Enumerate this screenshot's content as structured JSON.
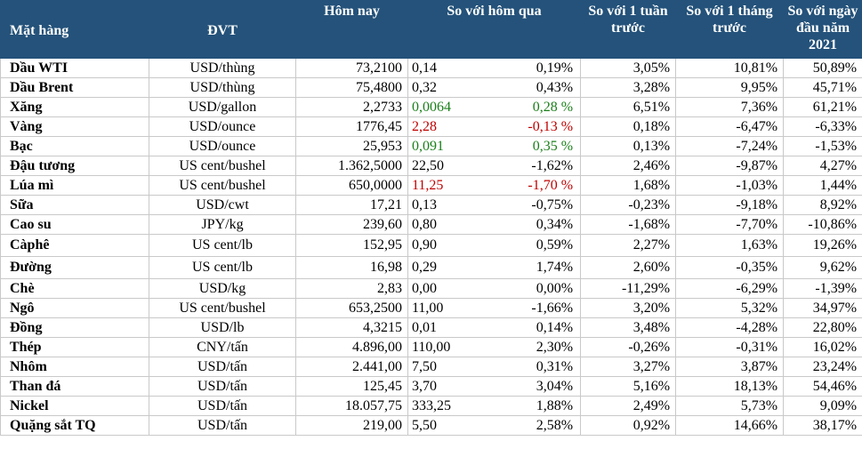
{
  "headers": {
    "item": "Mặt hàng",
    "unit": "ĐVT",
    "today": "Hôm nay",
    "vs_yesterday": "So với hôm qua",
    "vs_week": "So với 1 tuần trước",
    "vs_month": "So với 1 tháng trước",
    "vs_year_start": "So với ngày đầu năm 2021"
  },
  "colors": {
    "header_bg": "#24527a",
    "up": "#1a7f1a",
    "down": "#c00000"
  },
  "rows": [
    {
      "name": "Dầu WTI",
      "unit": "USD/thùng",
      "today": "73,2100",
      "chg": "0,14",
      "chg_pct": "0,19%",
      "week": "3,05%",
      "month": "10,81%",
      "ytd": "50,89%",
      "color": ""
    },
    {
      "name": "Dầu Brent",
      "unit": "USD/thùng",
      "today": "75,4800",
      "chg": "0,32",
      "chg_pct": "0,43%",
      "week": "3,28%",
      "month": "9,95%",
      "ytd": "45,71%",
      "color": ""
    },
    {
      "name": "Xăng",
      "unit": "USD/gallon",
      "today": "2,2733",
      "chg": "0,0064",
      "chg_pct": "0,28 %",
      "week": "6,51%",
      "month": "7,36%",
      "ytd": "61,21%",
      "color": "up"
    },
    {
      "name": "Vàng",
      "unit": "USD/ounce",
      "today": "1776,45",
      "chg": "2,28",
      "chg_pct": "-0,13 %",
      "week": "0,18%",
      "month": "-6,47%",
      "ytd": "-6,33%",
      "color": "down"
    },
    {
      "name": "Bạc",
      "unit": "USD/ounce",
      "today": "25,953",
      "chg": "0,091",
      "chg_pct": "0,35 %",
      "week": "0,13%",
      "month": "-7,24%",
      "ytd": "-1,53%",
      "color": "up"
    },
    {
      "name": "Đậu tương",
      "unit": "US cent/bushel",
      "today": "1.362,5000",
      "chg": "22,50",
      "chg_pct": "-1,62%",
      "week": "2,46%",
      "month": "-9,87%",
      "ytd": "4,27%",
      "color": ""
    },
    {
      "name": "Lúa mì",
      "unit": "US cent/bushel",
      "today": "650,0000",
      "chg": "11,25",
      "chg_pct": "-1,70 %",
      "week": "1,68%",
      "month": "-1,03%",
      "ytd": "1,44%",
      "color": "down"
    },
    {
      "name": "Sữa",
      "unit": "USD/cwt",
      "today": "17,21",
      "chg": "0,13",
      "chg_pct": "-0,75%",
      "week": "-0,23%",
      "month": "-9,18%",
      "ytd": "8,92%",
      "color": ""
    },
    {
      "name": "Cao su",
      "unit": "JPY/kg",
      "today": "239,60",
      "chg": "0,80",
      "chg_pct": "0,34%",
      "week": "-1,68%",
      "month": "-7,70%",
      "ytd": "-10,86%",
      "color": ""
    },
    {
      "name": "Càphê",
      "unit": "US cent/lb",
      "today": "152,95",
      "chg": "0,90",
      "chg_pct": "0,59%",
      "week": "2,27%",
      "month": "1,63%",
      "ytd": "19,26%",
      "color": ""
    },
    {
      "name": "Đường",
      "unit": "US cent/lb",
      "today": "16,98",
      "chg": "0,29",
      "chg_pct": "1,74%",
      "week": "2,60%",
      "month": "-0,35%",
      "ytd": "9,62%",
      "color": ""
    },
    {
      "name": "Chè",
      "unit": "USD/kg",
      "today": "2,83",
      "chg": "0,00",
      "chg_pct": "0,00%",
      "week": "-11,29%",
      "month": "-6,29%",
      "ytd": "-1,39%",
      "color": ""
    },
    {
      "name": "Ngô",
      "unit": "US cent/bushel",
      "today": "653,2500",
      "chg": "11,00",
      "chg_pct": "-1,66%",
      "week": "3,20%",
      "month": "5,32%",
      "ytd": "34,97%",
      "color": ""
    },
    {
      "name": "Đồng",
      "unit": "USD/lb",
      "today": "4,3215",
      "chg": "0,01",
      "chg_pct": "0,14%",
      "week": "3,48%",
      "month": "-4,28%",
      "ytd": "22,80%",
      "color": ""
    },
    {
      "name": "Thép",
      "unit": "CNY/tấn",
      "today": "4.896,00",
      "chg": "110,00",
      "chg_pct": "2,30%",
      "week": "-0,26%",
      "month": "-0,31%",
      "ytd": "16,02%",
      "color": ""
    },
    {
      "name": "Nhôm",
      "unit": "USD/tấn",
      "today": "2.441,00",
      "chg": "7,50",
      "chg_pct": "0,31%",
      "week": "3,27%",
      "month": "3,87%",
      "ytd": "23,24%",
      "color": ""
    },
    {
      "name": "Than đá",
      "unit": "USD/tấn",
      "today": "125,45",
      "chg": "3,70",
      "chg_pct": "3,04%",
      "week": "5,16%",
      "month": "18,13%",
      "ytd": "54,46%",
      "color": ""
    },
    {
      "name": "Nickel",
      "unit": "USD/tấn",
      "today": "18.057,75",
      "chg": "333,25",
      "chg_pct": "1,88%",
      "week": "2,49%",
      "month": "5,73%",
      "ytd": "9,09%",
      "color": ""
    },
    {
      "name": "Quặng sắt TQ",
      "unit": "USD/tấn",
      "today": "219,00",
      "chg": "5,50",
      "chg_pct": "2,58%",
      "week": "0,92%",
      "month": "14,66%",
      "ytd": "38,17%",
      "color": ""
    }
  ]
}
